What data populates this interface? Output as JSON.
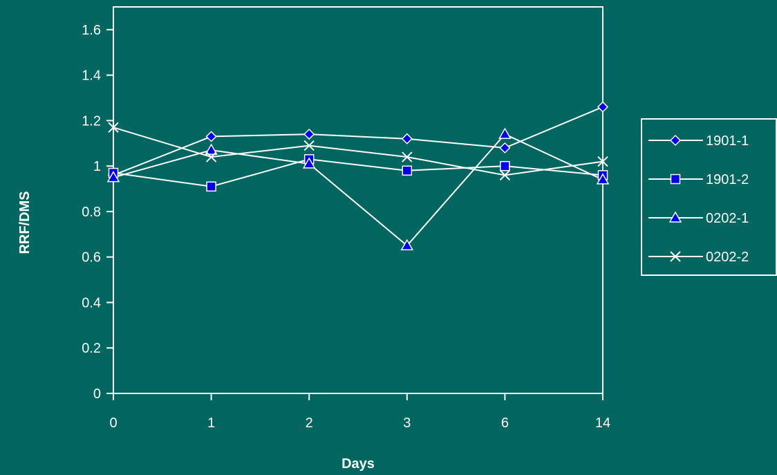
{
  "chart_data": {
    "type": "line",
    "categories": [
      "0",
      "1",
      "2",
      "3",
      "6",
      "14"
    ],
    "series": [
      {
        "name": "1901-1",
        "marker": "diamond",
        "values": [
          0.96,
          1.13,
          1.14,
          1.12,
          1.08,
          1.26
        ]
      },
      {
        "name": "1901-2",
        "marker": "square",
        "values": [
          0.97,
          0.91,
          1.03,
          0.98,
          1.0,
          0.96
        ]
      },
      {
        "name": "0202-1",
        "marker": "triangle",
        "values": [
          0.95,
          1.07,
          1.01,
          0.65,
          1.14,
          0.94
        ]
      },
      {
        "name": "0202-2",
        "marker": "x",
        "values": [
          1.17,
          1.04,
          1.09,
          1.04,
          0.96,
          1.02
        ]
      }
    ],
    "xlabel": "Days",
    "ylabel": "RRF/DMS",
    "ylim": [
      0,
      1.7
    ],
    "yticks": [
      "0",
      "0.2",
      "0.4",
      "0.6",
      "0.8",
      "1",
      "1.2",
      "1.4",
      "1.6"
    ],
    "grid": false,
    "legend": "right"
  },
  "colors": {
    "background": "#00665f",
    "foreground": "#ffffff",
    "marker_fill": "#0000ee"
  }
}
